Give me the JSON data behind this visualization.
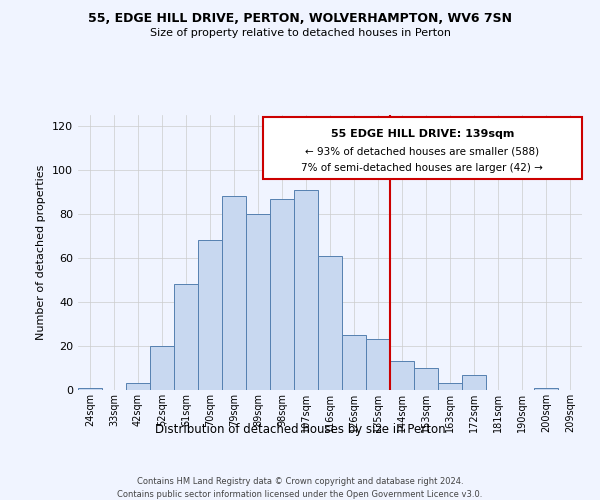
{
  "title": "55, EDGE HILL DRIVE, PERTON, WOLVERHAMPTON, WV6 7SN",
  "subtitle": "Size of property relative to detached houses in Perton",
  "xlabel": "Distribution of detached houses by size in Perton",
  "ylabel": "Number of detached properties",
  "bar_labels": [
    "24sqm",
    "33sqm",
    "42sqm",
    "52sqm",
    "61sqm",
    "70sqm",
    "79sqm",
    "89sqm",
    "98sqm",
    "107sqm",
    "116sqm",
    "126sqm",
    "135sqm",
    "144sqm",
    "153sqm",
    "163sqm",
    "172sqm",
    "181sqm",
    "190sqm",
    "200sqm",
    "209sqm"
  ],
  "bar_heights": [
    1,
    0,
    3,
    20,
    48,
    68,
    88,
    80,
    87,
    91,
    61,
    25,
    23,
    13,
    10,
    3,
    7,
    0,
    0,
    1,
    0
  ],
  "bar_color": "#c8d8f0",
  "bar_edge_color": "#5580b0",
  "annotation_title": "55 EDGE HILL DRIVE: 139sqm",
  "annotation_line1": "← 93% of detached houses are smaller (588)",
  "annotation_line2": "7% of semi-detached houses are larger (42) →",
  "ylim": [
    0,
    125
  ],
  "yticks": [
    0,
    20,
    40,
    60,
    80,
    100,
    120
  ],
  "line_color": "#cc0000",
  "box_color": "#cc0000",
  "footer1": "Contains HM Land Registry data © Crown copyright and database right 2024.",
  "footer2": "Contains public sector information licensed under the Open Government Licence v3.0.",
  "bg_color": "#f0f4ff",
  "grid_color": "#cccccc"
}
